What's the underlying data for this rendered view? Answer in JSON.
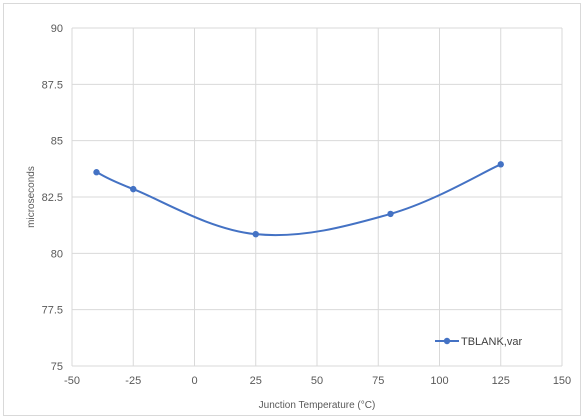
{
  "chart_data": {
    "type": "line",
    "title": "",
    "xlabel": "Junction Temperature (°C)",
    "ylabel": "microseconds",
    "xlim": [
      -50,
      150
    ],
    "ylim": [
      75,
      90
    ],
    "x_ticks": [
      -50,
      -25,
      0,
      25,
      50,
      75,
      100,
      125,
      150
    ],
    "y_ticks": [
      75,
      77.5,
      80,
      82.5,
      85,
      87.5,
      90
    ],
    "x_tick_labels": [
      "-50",
      "-25",
      "0",
      "25",
      "50",
      "75",
      "100",
      "125",
      "150"
    ],
    "y_tick_labels": [
      "75",
      "77.5",
      "80",
      "82.5",
      "85",
      "87.5",
      "90"
    ],
    "grid": true,
    "smooth": true,
    "legend_position": "bottom-right",
    "series": [
      {
        "name": "TBLANK,var",
        "color": "#4472c4",
        "x": [
          -40,
          -25,
          25,
          80,
          125
        ],
        "y": [
          83.6,
          82.85,
          80.85,
          81.75,
          83.95
        ]
      }
    ]
  }
}
